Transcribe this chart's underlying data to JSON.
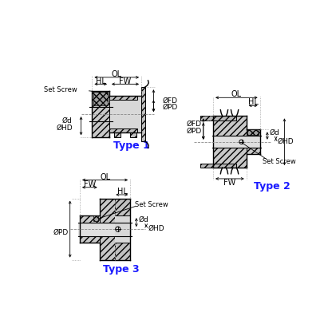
{
  "bg_color": "#ffffff",
  "blue_color": "#1a1aff",
  "type1_label": "Type 1",
  "type2_label": "Type 2",
  "type3_label": "Type 3",
  "hatch_color": "#c0c0c0",
  "gray_light": "#d8d8d8",
  "gray_mid": "#b8b8b8"
}
